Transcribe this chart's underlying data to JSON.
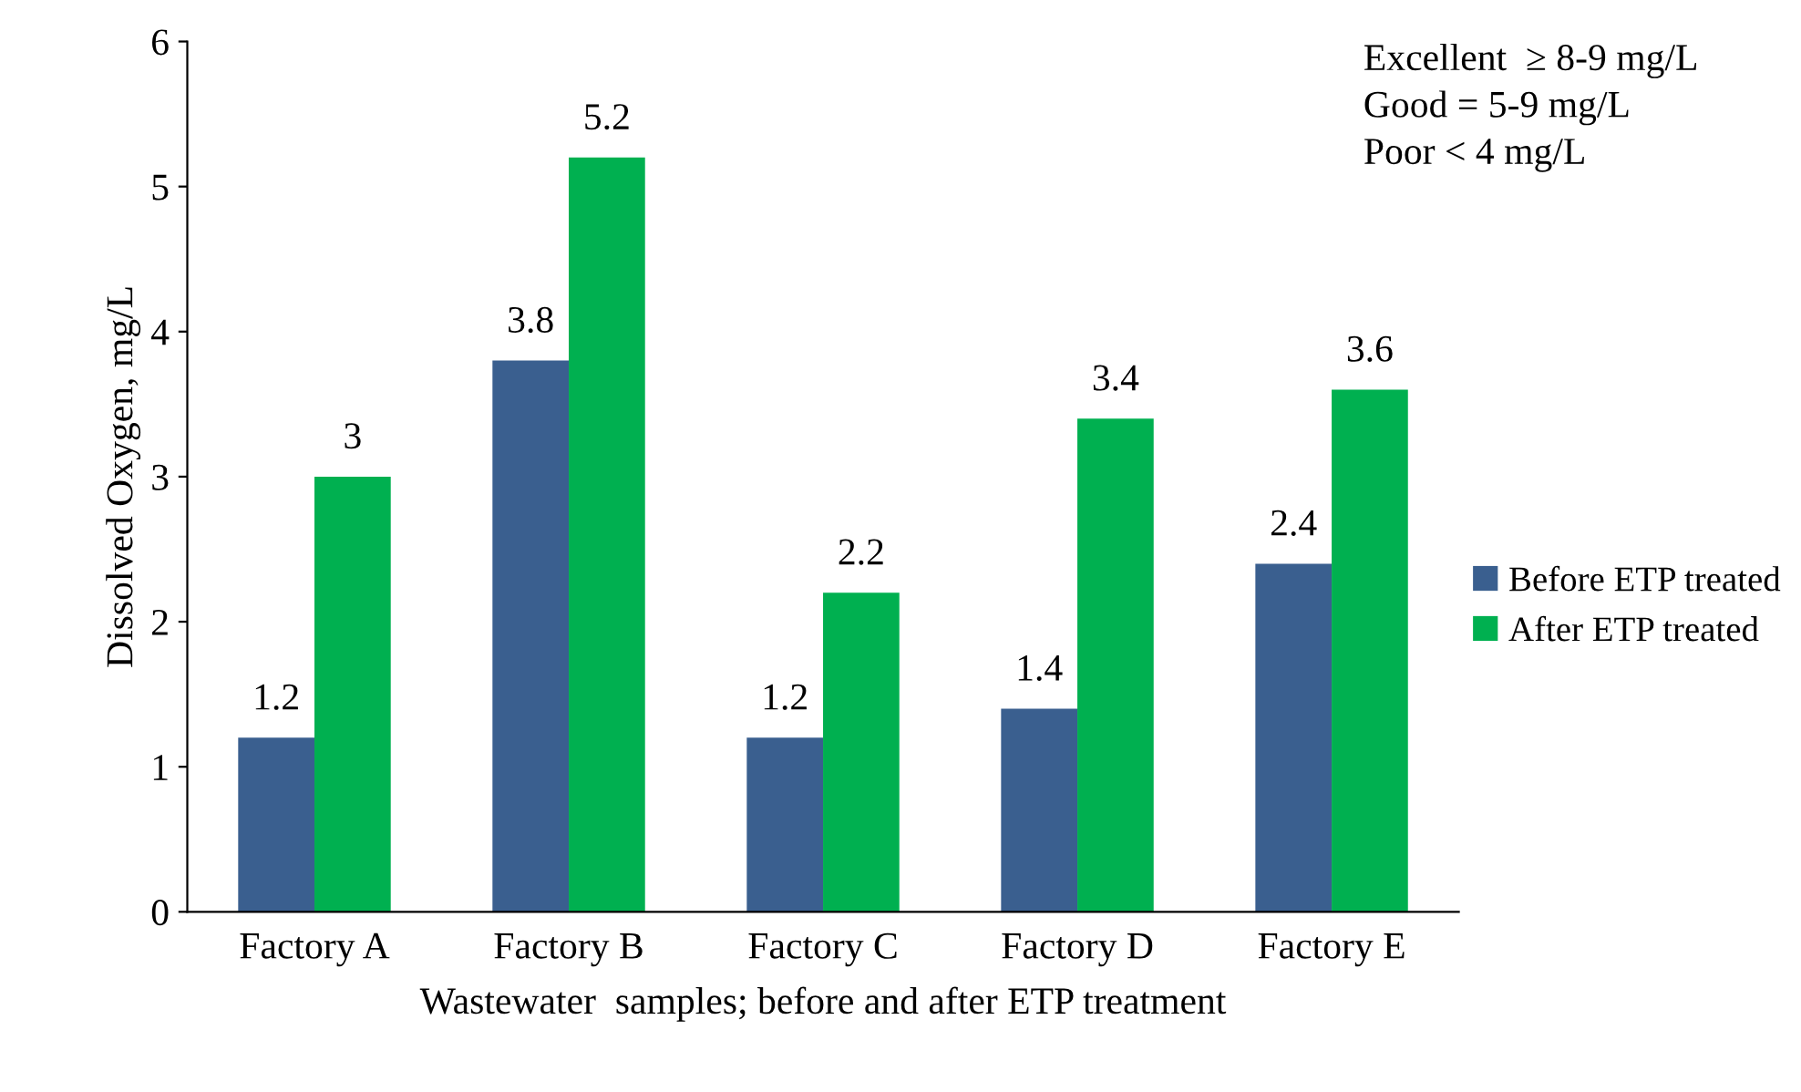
{
  "chart_data": {
    "type": "bar",
    "xlabel": "Wastewater  samples; before and after ETP treatment",
    "ylabel": "Dissolved Oxygen, mg/L",
    "categories": [
      "Factory A",
      "Factory B",
      "Factory C",
      "Factory D",
      "Factory E"
    ],
    "series": [
      {
        "name": "Before ETP treated",
        "color": "#3a5f8f",
        "values": [
          1.2,
          3.8,
          1.2,
          1.4,
          2.4
        ]
      },
      {
        "name": "After ETP treated",
        "color": "#00b050",
        "values": [
          3,
          5.2,
          2.2,
          3.4,
          3.6
        ]
      }
    ],
    "ylim": [
      0,
      6
    ],
    "yticks": [
      0,
      1,
      2,
      3,
      4,
      5,
      6
    ],
    "data_labels": true,
    "legend": "right",
    "grid": false,
    "annotations": [
      "Excellent  ≥ 8-9 mg/L",
      "Good = 5-9 mg/L",
      "Poor < 4 mg/L"
    ]
  }
}
